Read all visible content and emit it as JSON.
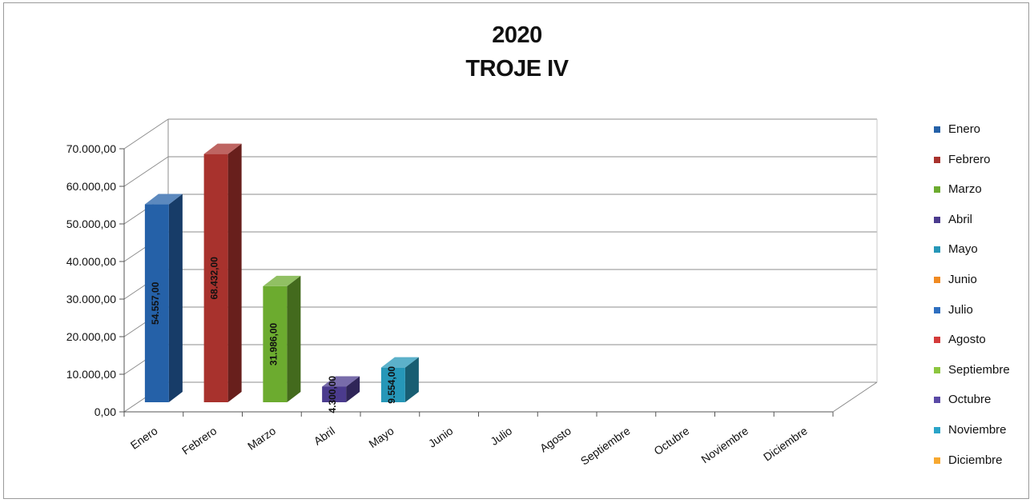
{
  "chart_data": {
    "type": "bar",
    "title": "2020",
    "subtitle": "TROJE IV",
    "categories": [
      "Enero",
      "Febrero",
      "Marzo",
      "Abril",
      "Mayo",
      "Junio",
      "Julio",
      "Agosto",
      "Septiembre",
      "Octubre",
      "Noviembre",
      "Diciembre"
    ],
    "values": [
      54557,
      68432,
      31986,
      4300,
      9554,
      null,
      null,
      null,
      null,
      null,
      null,
      null
    ],
    "value_labels": [
      "54.557,00",
      "68.432,00",
      "31.986,00",
      "4.300,00",
      "9.554,00",
      "",
      "",
      "",
      "",
      "",
      "",
      ""
    ],
    "ylim": [
      0,
      70000
    ],
    "yticks": [
      0,
      10000,
      20000,
      30000,
      40000,
      50000,
      60000,
      70000
    ],
    "ytick_labels": [
      "0,00",
      "10.000,00",
      "20.000,00",
      "30.000,00",
      "40.000,00",
      "50.000,00",
      "60.000,00",
      "70.000,00"
    ],
    "grid": true,
    "three_d": true,
    "legend_position": "right",
    "legend": [
      "Enero",
      "Febrero",
      "Marzo",
      "Abril",
      "Mayo",
      "Junio",
      "Julio",
      "Agosto",
      "Septiembre",
      "Octubre",
      "Noviembre",
      "Diciembre"
    ],
    "colors": [
      "#2561a8",
      "#a8322d",
      "#6cab2f",
      "#4b3b8e",
      "#2697b8",
      "#f08a22",
      "#2e6fc0",
      "#d43b3a",
      "#8cc63f",
      "#5a4aa6",
      "#2aa4c8",
      "#f7a830"
    ],
    "xlabel": "",
    "ylabel": ""
  }
}
